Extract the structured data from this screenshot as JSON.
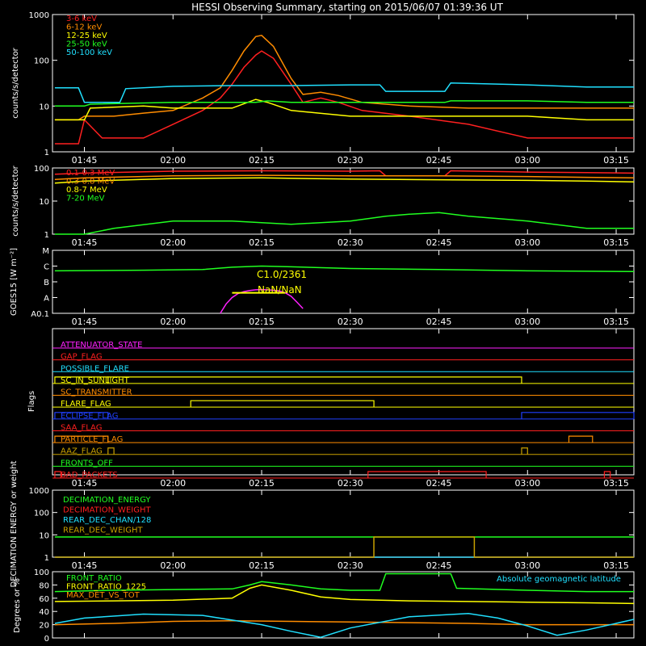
{
  "title": "HESSI Observing Summary, starting on 2015/06/07 01:39:36 UT",
  "time_ticks": [
    "01:45",
    "02:00",
    "02:15",
    "02:30",
    "02:45",
    "03:00",
    "03:15"
  ],
  "colors": {
    "red": "#ff2020",
    "orange": "#ff8c00",
    "yellow": "#ffff00",
    "green": "#20ff20",
    "cyan": "#20e0ff",
    "magenta": "#ff20ff",
    "blue": "#2040ff",
    "olive": "#c8a000",
    "white": "#ffffff"
  },
  "chart_data": [
    {
      "type": "line",
      "ylabel": "counts/s/detector",
      "yscale": "log",
      "ylim": [
        1,
        1000
      ],
      "ytick_labels": [
        "1",
        "10",
        "100",
        "1000"
      ],
      "x_unit": "UT",
      "series": [
        {
          "name": "3-6 keV",
          "color": "red",
          "x": [
            "01:40",
            "01:44",
            "01:45",
            "01:48",
            "01:55",
            "02:00",
            "02:05",
            "02:08",
            "02:10",
            "02:12",
            "02:14",
            "02:15",
            "02:17",
            "02:20",
            "02:22",
            "02:25",
            "02:28",
            "02:32",
            "02:40",
            "02:50",
            "03:00",
            "03:10",
            "03:18"
          ],
          "y": [
            1.5,
            1.5,
            5,
            2,
            2,
            4,
            8,
            15,
            30,
            70,
            130,
            160,
            110,
            30,
            12,
            15,
            12,
            8,
            6,
            4,
            2,
            2,
            2
          ]
        },
        {
          "name": "6-12 keV",
          "color": "orange",
          "x": [
            "01:40",
            "01:44",
            "01:45",
            "01:50",
            "01:55",
            "02:00",
            "02:05",
            "02:08",
            "02:10",
            "02:12",
            "02:14",
            "02:15",
            "02:17",
            "02:20",
            "02:22",
            "02:25",
            "02:28",
            "02:32",
            "02:40",
            "02:50",
            "03:00",
            "03:10",
            "03:18"
          ],
          "y": [
            5,
            5,
            6,
            6,
            7,
            8,
            15,
            25,
            60,
            160,
            330,
            350,
            200,
            40,
            18,
            20,
            17,
            12,
            10,
            9,
            9,
            9,
            9
          ]
        },
        {
          "name": "12-25 keV",
          "color": "yellow",
          "x": [
            "01:40",
            "01:45",
            "01:46",
            "01:55",
            "02:00",
            "02:10",
            "02:14",
            "02:16",
            "02:20",
            "02:30",
            "02:45",
            "03:00",
            "03:10",
            "03:18"
          ],
          "y": [
            5,
            5,
            9,
            10,
            9,
            9,
            14,
            12,
            8,
            6,
            6,
            6,
            5,
            5
          ]
        },
        {
          "name": "25-50 keV",
          "color": "green",
          "x": [
            "01:40",
            "01:45",
            "01:46",
            "02:00",
            "02:14",
            "02:16",
            "02:20",
            "02:30",
            "02:36",
            "02:46",
            "02:47",
            "03:00",
            "03:10",
            "03:18"
          ],
          "y": [
            10,
            10,
            11,
            12,
            12,
            13,
            12,
            12,
            12,
            12,
            13,
            13,
            12,
            12
          ]
        },
        {
          "name": "50-100 keV",
          "color": "cyan",
          "x": [
            "01:40",
            "01:44",
            "01:45",
            "01:51",
            "01:52",
            "02:00",
            "02:10",
            "02:20",
            "02:30",
            "02:35",
            "02:36",
            "02:46",
            "02:47",
            "03:00",
            "03:10",
            "03:18"
          ],
          "y": [
            25,
            25,
            12,
            12,
            24,
            27,
            28,
            28,
            29,
            29,
            21,
            21,
            32,
            29,
            26,
            26
          ]
        }
      ]
    },
    {
      "type": "line",
      "ylabel": "counts/s/detector",
      "yscale": "log",
      "ylim": [
        1,
        100
      ],
      "ytick_labels": [
        "1",
        "10",
        "100"
      ],
      "series": [
        {
          "name": "0.1-0.3 MeV",
          "color": "red",
          "x": [
            "01:40",
            "01:45",
            "02:00",
            "02:15",
            "02:30",
            "02:35",
            "02:36",
            "02:46",
            "02:47",
            "03:00",
            "03:10",
            "03:18"
          ],
          "y": [
            65,
            70,
            80,
            82,
            80,
            82,
            58,
            58,
            82,
            75,
            72,
            70
          ]
        },
        {
          "name": "0.3-0.8 MeV",
          "color": "orange",
          "x": [
            "01:40",
            "01:45",
            "02:00",
            "02:15",
            "02:30",
            "02:45",
            "03:00",
            "03:10",
            "03:18"
          ],
          "y": [
            45,
            50,
            58,
            60,
            58,
            58,
            55,
            52,
            50
          ]
        },
        {
          "name": "0.8-7 MeV",
          "color": "yellow",
          "x": [
            "01:40",
            "01:45",
            "02:00",
            "02:15",
            "02:30",
            "02:45",
            "03:00",
            "03:10",
            "03:18"
          ],
          "y": [
            35,
            40,
            48,
            50,
            46,
            44,
            42,
            40,
            38
          ]
        },
        {
          "name": "7-20 MeV",
          "color": "green",
          "x": [
            "01:40",
            "01:45",
            "01:50",
            "02:00",
            "02:10",
            "02:20",
            "02:30",
            "02:36",
            "02:40",
            "02:45",
            "02:50",
            "03:00",
            "03:10",
            "03:18"
          ],
          "y": [
            1,
            1,
            1.5,
            2.5,
            2.5,
            2,
            2.5,
            3.5,
            4,
            4.5,
            3.5,
            2.5,
            1.5,
            1.5
          ]
        }
      ]
    },
    {
      "type": "line",
      "ylabel": "GOES15 [W m⁻²]",
      "ytick_labels": [
        "A0.1",
        "A",
        "B",
        "C",
        "M"
      ],
      "ylim": [
        1e-08,
        0.0001
      ],
      "yscale": "log",
      "annotations": [
        "C1.0/2361",
        "NaN/NaN"
      ],
      "series": [
        {
          "name": "",
          "color": "green",
          "x": [
            "01:40",
            "01:55",
            "02:05",
            "02:10",
            "02:15",
            "02:20",
            "02:30",
            "02:45",
            "03:00",
            "03:18"
          ],
          "y": [
            5e-06,
            5.5e-06,
            6e-06,
            8.5e-06,
            1e-05,
            9e-06,
            7e-06,
            6e-06,
            5e-06,
            4.5e-06
          ]
        },
        {
          "name": "",
          "color": "magenta",
          "x": [
            "02:08",
            "02:09",
            "02:10",
            "02:11",
            "02:12",
            "02:13",
            "02:14",
            "02:15",
            "02:16",
            "02:17",
            "02:18",
            "02:19",
            "02:20",
            "02:21",
            "02:22"
          ],
          "y": [
            1e-08,
            4e-08,
            1e-07,
            1.8e-07,
            2.4e-07,
            2.8e-07,
            3.1e-07,
            3.2e-07,
            3.1e-07,
            2.9e-07,
            2.6e-07,
            2e-07,
            1.2e-07,
            5e-08,
            2e-08
          ]
        }
      ]
    },
    {
      "type": "line",
      "ylabel": "Flags",
      "flags": [
        {
          "name": "ATTENUATOR_STATE",
          "color": "magenta",
          "on": []
        },
        {
          "name": "GAP_FLAG",
          "color": "red",
          "on": []
        },
        {
          "name": "POSSIBLE_FLARE",
          "color": "cyan",
          "on": []
        },
        {
          "name": "SC_IN_SUNLIGHT",
          "color": "yellow",
          "on": [
            [
              "01:40",
              "01:49"
            ],
            [
              "01:49",
              "02:59"
            ]
          ]
        },
        {
          "name": "SC_TRANSMITTER",
          "color": "orange",
          "on": []
        },
        {
          "name": "FLARE_FLAG",
          "color": "yellow",
          "on": [
            [
              "02:03",
              "02:34"
            ]
          ]
        },
        {
          "name": "ECLIPSE_FLAG",
          "color": "blue",
          "on": [
            [
              "01:40",
              "01:49"
            ],
            [
              "02:59",
              "03:18"
            ]
          ]
        },
        {
          "name": "SAA_FLAG",
          "color": "red",
          "on": []
        },
        {
          "name": "PARTICLE_FLAG",
          "color": "orange",
          "on": [
            [
              "01:40",
              "01:49"
            ],
            [
              "03:07",
              "03:11"
            ]
          ]
        },
        {
          "name": "AAZ_FLAG",
          "color": "olive",
          "on": [
            [
              "01:49",
              "01:50"
            ],
            [
              "02:59",
              "03:00"
            ]
          ]
        },
        {
          "name": "FRONTS_OFF",
          "color": "green",
          "on": []
        },
        {
          "name": "BAD_PACKETS",
          "color": "red",
          "on": [
            [
              "01:40",
              "01:41"
            ],
            [
              "02:33",
              "02:53"
            ],
            [
              "03:13",
              "03:14"
            ]
          ]
        }
      ]
    },
    {
      "type": "line",
      "ylabel": "DECIMATION ENERGY or weight",
      "yscale": "log",
      "ylim": [
        1,
        1000
      ],
      "ytick_labels": [
        "1",
        "10",
        "100",
        "1000"
      ],
      "series": [
        {
          "name": "DECIMATION_ENERGY",
          "color": "green",
          "x": [
            "01:40",
            "01:44",
            "01:44",
            "01:46",
            "01:46",
            "02:34",
            "02:34",
            "02:59",
            "02:59",
            "03:18"
          ],
          "y": [
            8,
            8,
            8,
            8,
            8,
            8,
            8,
            8,
            8,
            8
          ]
        },
        {
          "name": "DECIMATION_WEIGHT",
          "color": "red",
          "x": [
            "01:40",
            "03:18"
          ],
          "y": [
            1,
            1
          ]
        },
        {
          "name": "REAR_DEC_CHAN/128",
          "color": "cyan",
          "x": [
            "01:40",
            "03:18"
          ],
          "y": [
            1,
            1
          ]
        },
        {
          "name": "REAR_DEC_WEIGHT",
          "color": "olive",
          "x": [
            "01:40",
            "02:34",
            "02:34",
            "02:51",
            "02:51",
            "03:18"
          ],
          "y": [
            1,
            1,
            8,
            8,
            1,
            1
          ]
        }
      ]
    },
    {
      "type": "line",
      "ylabel": "Degrees or %",
      "ylim": [
        0,
        100
      ],
      "ytick_labels": [
        "0",
        "20",
        "40",
        "60",
        "80",
        "100"
      ],
      "annotations": [
        "Absolute geomagnetic latitude"
      ],
      "series": [
        {
          "name": "FRONT_RATIO",
          "color": "green",
          "x": [
            "01:40",
            "01:50",
            "02:00",
            "02:10",
            "02:13",
            "02:15",
            "02:20",
            "02:25",
            "02:30",
            "02:35",
            "02:36",
            "02:45",
            "02:47",
            "02:48",
            "03:00",
            "03:10",
            "03:18"
          ],
          "y": [
            70,
            72,
            73,
            74,
            80,
            85,
            80,
            74,
            72,
            72,
            97,
            97,
            97,
            75,
            72,
            70,
            70
          ]
        },
        {
          "name": "FRONT_RATIO_1225",
          "color": "yellow",
          "x": [
            "01:40",
            "01:50",
            "02:00",
            "02:10",
            "02:13",
            "02:15",
            "02:20",
            "02:25",
            "02:30",
            "02:40",
            "02:50",
            "03:00",
            "03:10",
            "03:18"
          ],
          "y": [
            55,
            56,
            57,
            60,
            75,
            80,
            72,
            62,
            58,
            56,
            55,
            54,
            53,
            52
          ]
        },
        {
          "name": "MAX_DET_VS_TOT",
          "color": "orange",
          "x": [
            "01:40",
            "01:50",
            "02:00",
            "02:10",
            "02:20",
            "02:30",
            "02:40",
            "02:50",
            "03:00",
            "03:10",
            "03:18"
          ],
          "y": [
            20,
            22,
            25,
            26,
            25,
            24,
            23,
            22,
            20,
            20,
            20
          ]
        },
        {
          "name": "",
          "color": "cyan",
          "x": [
            "01:40",
            "01:45",
            "01:55",
            "02:05",
            "02:15",
            "02:20",
            "02:25",
            "02:30",
            "02:40",
            "02:50",
            "02:55",
            "03:00",
            "03:05",
            "03:10",
            "03:18"
          ],
          "y": [
            22,
            30,
            36,
            34,
            20,
            10,
            1,
            15,
            32,
            37,
            30,
            18,
            4,
            12,
            28
          ]
        }
      ]
    }
  ]
}
